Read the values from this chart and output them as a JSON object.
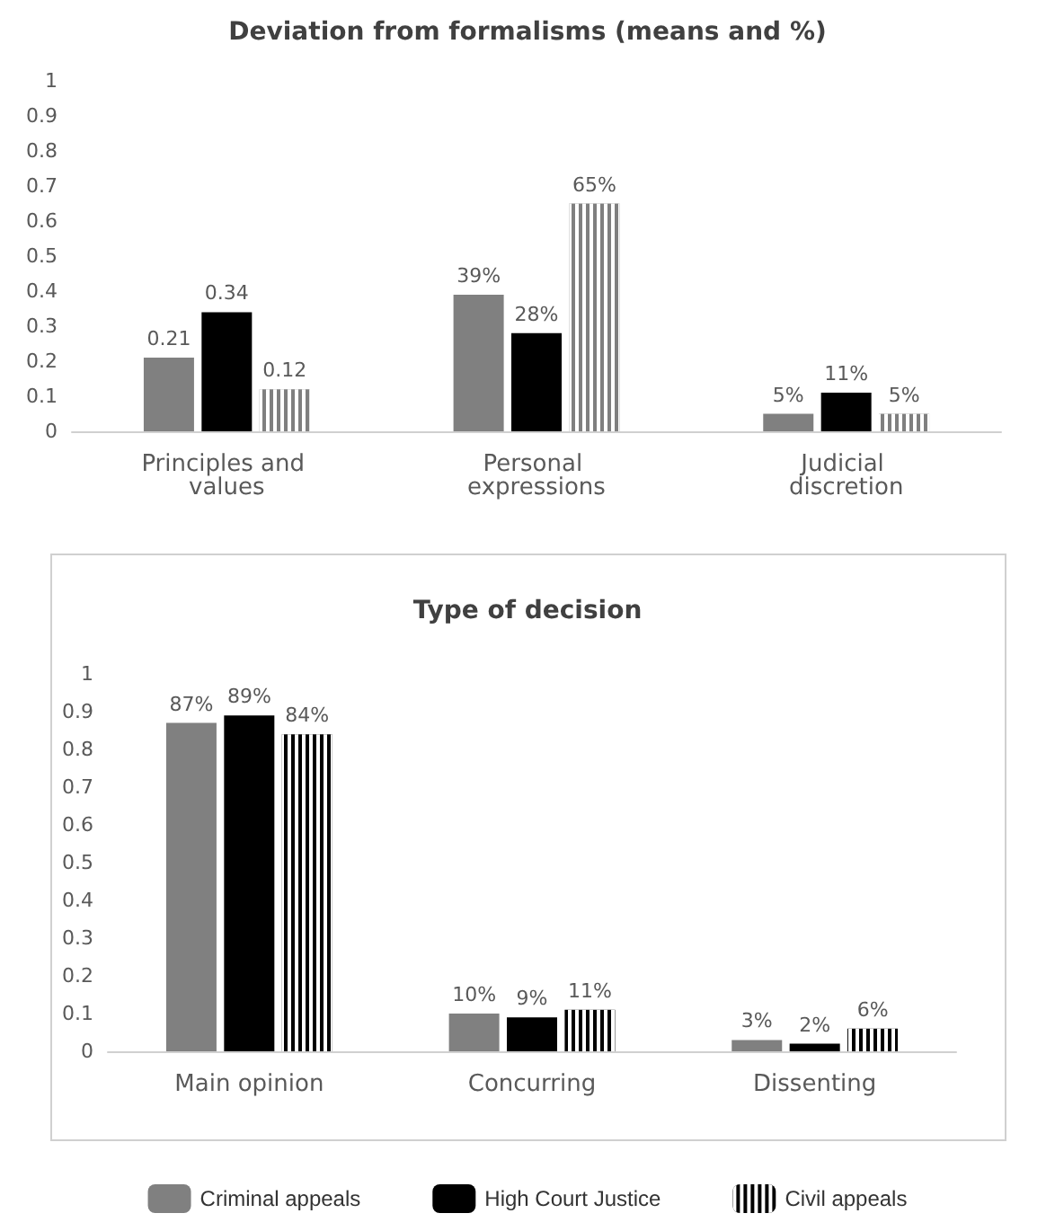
{
  "chart_data": [
    {
      "type": "bar",
      "title": "Deviation from formalisms (means and %)",
      "categories": [
        "Principles and values",
        "Personal expressions",
        "Judicial discretion"
      ],
      "series": [
        {
          "color": "#808080",
          "values": [
            0.21,
            0.39,
            0.05
          ],
          "value_labels": [
            "0.21",
            "39%",
            "5%"
          ]
        },
        {
          "color": "#000000",
          "values": [
            0.34,
            0.28,
            0.11
          ],
          "value_labels": [
            "0.34",
            "28%",
            "11%"
          ]
        },
        {
          "color": "#7f7f7f",
          "values": [
            0.12,
            0.65,
            0.05
          ],
          "value_labels": [
            "0.12",
            "65%",
            "5%"
          ]
        }
      ],
      "ylim": [
        0,
        1
      ],
      "yticks": [
        0,
        0.1,
        0.2,
        0.3,
        0.4,
        0.5,
        0.6,
        0.7,
        0.8,
        0.9,
        1
      ],
      "grid": false,
      "legend": false
    },
    {
      "type": "bar",
      "title": "Type of decision",
      "categories": [
        "Main opinion",
        "Concurring",
        "Dissenting"
      ],
      "series": [
        {
          "name": "Criminal appeals",
          "color": "#808080",
          "values": [
            0.87,
            0.1,
            0.03
          ],
          "value_labels": [
            "87%",
            "10%",
            "3%"
          ]
        },
        {
          "name": "High Court Justice",
          "color": "#000000",
          "values": [
            0.89,
            0.09,
            0.02
          ],
          "value_labels": [
            "89%",
            "9%",
            "2%"
          ]
        },
        {
          "name": "Civil appeals",
          "color": "#000000",
          "values": [
            0.84,
            0.11,
            0.06
          ],
          "value_labels": [
            "84%",
            "11%",
            "6%"
          ]
        }
      ],
      "ylim": [
        0,
        1
      ],
      "yticks": [
        0,
        0.1,
        0.2,
        0.3,
        0.4,
        0.5,
        0.6,
        0.7,
        0.8,
        0.9,
        1
      ],
      "grid": false,
      "legend": "bottom"
    }
  ]
}
